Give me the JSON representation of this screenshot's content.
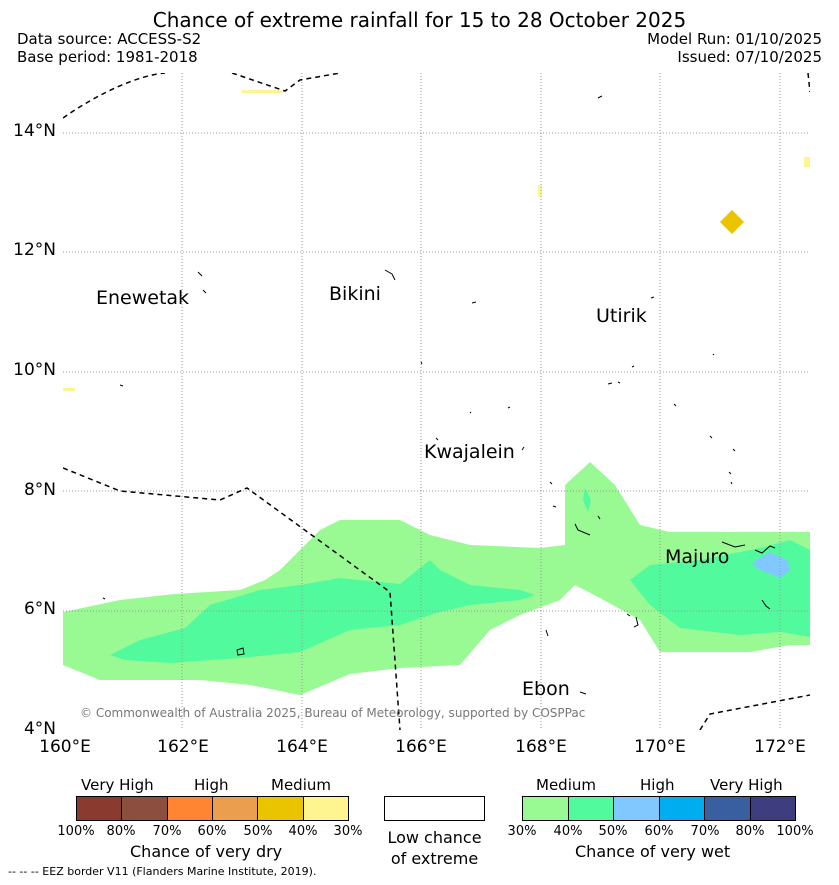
{
  "title": "Chance of extreme rainfall for 15 to 28 October 2025",
  "data_source": "Data source: ACCESS-S2",
  "base_period": "Base period: 1981-2018",
  "model_run": "Model Run: 01/10/2025",
  "issued": "Issued: 07/10/2025",
  "y_ticks": [
    "14°N",
    "12°N",
    "10°N",
    "8°N",
    "6°N",
    "4°N"
  ],
  "x_ticks": [
    "160°E",
    "162°E",
    "164°E",
    "166°E",
    "168°E",
    "170°E",
    "172°E"
  ],
  "places": {
    "enewetak": "Enewetak",
    "bikini": "Bikini",
    "utirik": "Utirik",
    "kwajalein": "Kwajalein",
    "majuro": "Majuro",
    "ebon": "Ebon"
  },
  "copyright": "© Commonwealth of Australia 2025, Bureau of Meteorology, supported by COSPPac",
  "legend_dry": {
    "headers": [
      "Very High",
      "High",
      "Medium"
    ],
    "colors": [
      "#8B3A2F",
      "#8B4F3F",
      "#FF8533",
      "#EB9E4D",
      "#EBC400",
      "#FFF590"
    ],
    "ticks": [
      "100%",
      "80%",
      "70%",
      "60%",
      "50%",
      "40%",
      "30%"
    ],
    "caption": "Chance of very dry"
  },
  "legend_low": {
    "color": "#ffffff",
    "caption_line1": "Low chance",
    "caption_line2": "of extreme"
  },
  "legend_wet": {
    "headers": [
      "Medium",
      "High",
      "Very High"
    ],
    "colors": [
      "#99FA94",
      "#52FA9E",
      "#80C8FF",
      "#00AEEF",
      "#3A5FA0",
      "#3E3D80"
    ],
    "ticks": [
      "30%",
      "40%",
      "50%",
      "60%",
      "70%",
      "80%",
      "100%"
    ],
    "caption": "Chance of very wet"
  },
  "footer": "--  --  -- EEZ border V11 (Flanders Marine Institute, 2019)."
}
